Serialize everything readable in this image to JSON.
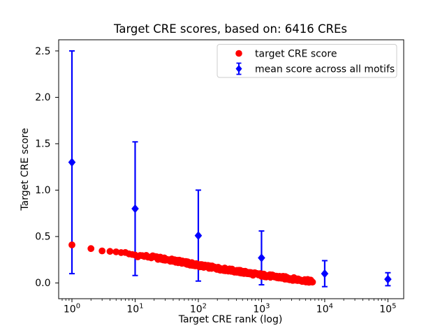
{
  "figure": {
    "background_color": "#ffffff",
    "frame_color": "#000000"
  },
  "chart_data": {
    "type": "scatter",
    "title": "Target CRE scores, based on: 6416 CREs",
    "xlabel": "Target CRE rank (log)",
    "ylabel": "Target CRE score",
    "x_scale": "log10",
    "xlim_log10": [
      -0.21,
      5.25
    ],
    "ylim": [
      -0.17,
      2.62
    ],
    "grid": false,
    "legend_position": "upper right",
    "total_cres": 6416,
    "x_ticks": [
      1,
      10,
      100,
      1000,
      10000,
      100000
    ],
    "x_tick_base": "10",
    "x_tick_exponents": [
      "0",
      "1",
      "2",
      "3",
      "4",
      "5"
    ],
    "y_ticks": [
      "0.0",
      "0.5",
      "1.0",
      "1.5",
      "2.0",
      "2.5"
    ],
    "series": [
      {
        "name": "target CRE score",
        "marker": "circle",
        "color": "#ff0000",
        "n_points": 6416,
        "points_sampled": {
          "ranks": [
            1,
            2,
            3,
            4,
            5,
            7,
            10,
            20,
            50,
            100,
            300,
            1000,
            3000,
            6416
          ],
          "scores": [
            0.41,
            0.37,
            0.345,
            0.34,
            0.335,
            0.32,
            0.3,
            0.275,
            0.23,
            0.19,
            0.14,
            0.085,
            0.045,
            0.015
          ]
        }
      },
      {
        "name": "mean score across all motifs",
        "marker": "diamond",
        "color": "#0000ff",
        "x": [
          1,
          10,
          100,
          1000,
          10000,
          100000
        ],
        "mean": [
          1.3,
          0.8,
          0.51,
          0.27,
          0.1,
          0.04
        ],
        "err": [
          1.2,
          0.72,
          0.49,
          0.29,
          0.14,
          0.07
        ]
      }
    ]
  }
}
